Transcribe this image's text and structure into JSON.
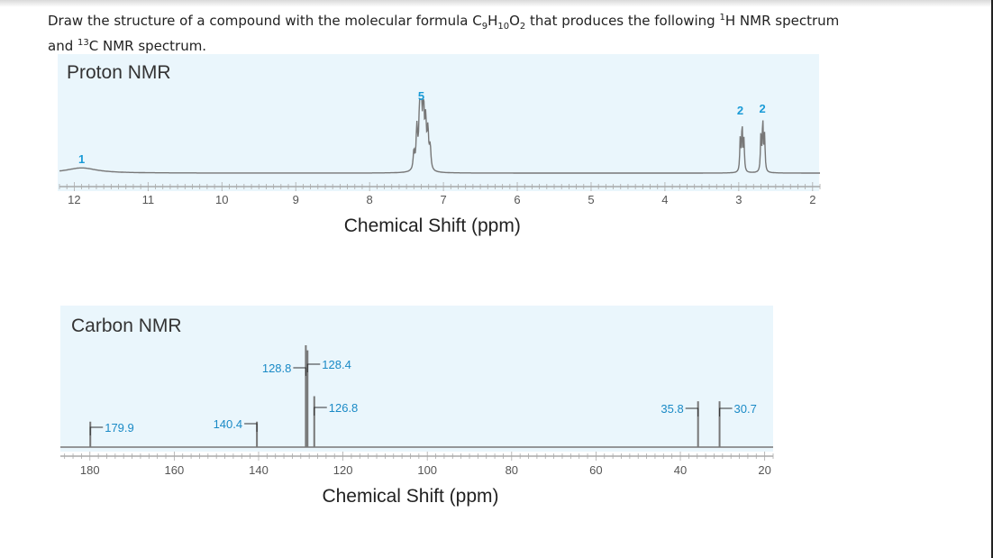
{
  "question": {
    "line1_a": "Draw the structure of a compound with the molecular formula C",
    "sub_c": "9",
    "h": "H",
    "sub_h": "10",
    "o": "O",
    "sub_o": "2",
    "line1_b": " that produces the following ",
    "sup_1": "1",
    "line1_c": "H NMR spectrum",
    "line2_a": "and ",
    "sup_13": "13",
    "line2_b": "C NMR spectrum."
  },
  "chart_data": [
    {
      "type": "line",
      "title": "Proton NMR",
      "xlabel": "Chemical Shift (ppm)",
      "xlim": [
        12.2,
        1.9
      ],
      "x_reversed": true,
      "x_ticks": [
        "12",
        "11",
        "10",
        "9",
        "8",
        "7",
        "6",
        "5",
        "4",
        "3",
        "2"
      ],
      "grid": false,
      "peaks": [
        {
          "shift": 11.9,
          "integration": "1",
          "shape": "broad",
          "height": 0.08
        },
        {
          "shift": 7.3,
          "integration": "5",
          "shape": "multiplet",
          "height": 0.92
        },
        {
          "shift": 3.0,
          "integration": "2",
          "shape": "triplet",
          "height": 0.62
        },
        {
          "shift": 2.7,
          "integration": "2",
          "shape": "triplet",
          "height": 0.68
        }
      ],
      "line_color": "#777777"
    },
    {
      "type": "bar",
      "title": "Carbon NMR",
      "xlabel": "Chemical Shift (ppm)",
      "xlim": [
        187,
        18
      ],
      "x_reversed": true,
      "x_ticks": [
        "180",
        "160",
        "140",
        "120",
        "100",
        "80",
        "60",
        "40",
        "20"
      ],
      "grid": false,
      "peaks": [
        {
          "shift": 179.9,
          "label": "179.9",
          "height": 0.25
        },
        {
          "shift": 140.4,
          "label": "140.4",
          "height": 0.25
        },
        {
          "shift": 128.8,
          "label": "128.8",
          "height": 1.0
        },
        {
          "shift": 128.4,
          "label": "128.4",
          "height": 0.95
        },
        {
          "shift": 126.8,
          "label": "126.8",
          "height": 0.5
        },
        {
          "shift": 35.8,
          "label": "35.8",
          "height": 0.45
        },
        {
          "shift": 30.7,
          "label": "30.7",
          "height": 0.45
        }
      ],
      "line_color": "#777777",
      "label_color": "#1a8ac6"
    }
  ]
}
